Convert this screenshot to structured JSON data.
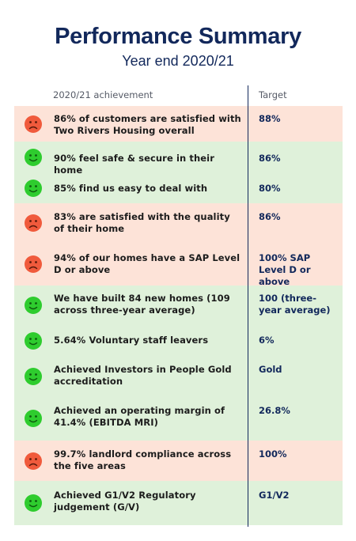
{
  "header": {
    "title": "Performance Summary",
    "subtitle": "Year end 2020/21"
  },
  "table": {
    "col_achievement": "2020/21 achievement",
    "col_target": "Target",
    "colors": {
      "bad_row": "#fde3d8",
      "good_row": "#dff1da",
      "sad_face": "#f05a3c",
      "happy_face": "#2ecc2e"
    },
    "rows": [
      {
        "status": "sad",
        "achievement": "86% of customers are satisfied with Two Rivers Housing overall",
        "target": "88%"
      },
      {
        "status": "happy",
        "achievement": "90% feel safe & secure in their home",
        "target": "86%"
      },
      {
        "status": "happy",
        "achievement": "85% find us easy to deal with",
        "target": "80%"
      },
      {
        "status": "sad",
        "achievement": "83% are satisfied with the quality of their home",
        "target": "86%"
      },
      {
        "status": "sad",
        "achievement": "94% of our homes have a SAP Level D or above",
        "target": "100% SAP Level D or above"
      },
      {
        "status": "happy",
        "achievement": "We have built 84 new homes (109 across three-year average)",
        "target": "100 (three-year average)"
      },
      {
        "status": "happy",
        "achievement": "5.64% Voluntary staff leavers",
        "target": "6%"
      },
      {
        "status": "happy",
        "achievement": "Achieved Investors in People Gold accreditation",
        "target": "Gold"
      },
      {
        "status": "happy",
        "achievement": "Achieved an operating margin of 41.4% (EBITDA MRI)",
        "target": "26.8%"
      },
      {
        "status": "sad",
        "achievement": "99.7% landlord compliance across the five areas",
        "target": "100%"
      },
      {
        "status": "happy",
        "achievement": "Achieved G1/V2 Regulatory judgement (G/V)",
        "target": "G1/V2"
      }
    ]
  }
}
